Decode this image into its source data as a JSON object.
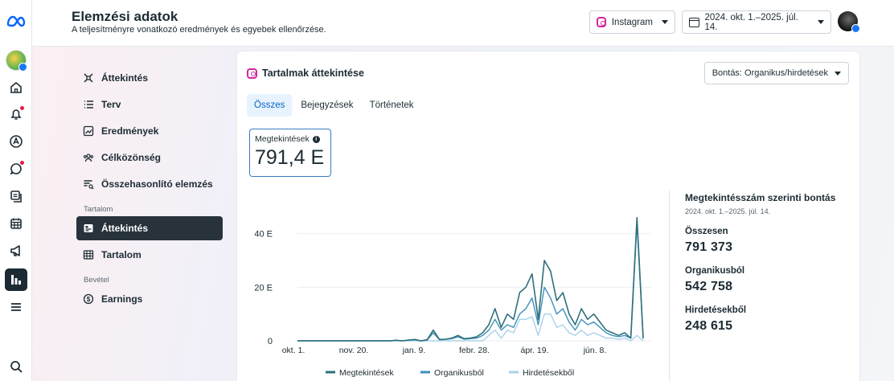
{
  "header": {
    "title": "Elemzési adatok",
    "subtitle": "A teljesítményre vonatkozó eredmények és egyebek ellenőrzése.",
    "platform": "Instagram",
    "date_range": "2024. okt. 1.–2025. júl. 14."
  },
  "nav": {
    "items": [
      {
        "label": "Áttekintés"
      },
      {
        "label": "Terv"
      },
      {
        "label": "Eredmények"
      },
      {
        "label": "Célközönség"
      },
      {
        "label": "Összehasonlító elemzés"
      }
    ],
    "section_content": "Tartalom",
    "content_items": [
      {
        "label": "Áttekintés"
      },
      {
        "label": "Tartalom"
      }
    ],
    "section_revenue": "Bevétel",
    "revenue_items": [
      {
        "label": "Earnings"
      }
    ]
  },
  "card": {
    "title": "Tartalmak áttekintése",
    "breakdown_label": "Bontás: Organikus/hirdetések",
    "tabs": [
      "Összes",
      "Bejegyzések",
      "Történetek"
    ],
    "metric_label": "Megtekintések",
    "metric_value": "791,4 E"
  },
  "breakdown_panel": {
    "title": "Megtekintésszám szerinti bontás",
    "date": "2024. okt. 1.–2025. júl. 14.",
    "total_label": "Összesen",
    "total_value": "791 373",
    "organic_label": "Organikusból",
    "organic_value": "542 758",
    "ads_label": "Hirdetésekből",
    "ads_value": "248 615"
  },
  "colors": {
    "views": "#2e6f7a",
    "organic": "#3e8fba",
    "ads": "#a9d2ea"
  },
  "chart_data": {
    "type": "line",
    "x_ticks": [
      "okt. 1.",
      "nov. 20.",
      "jan. 9.",
      "febr. 28.",
      "ápr. 19.",
      "jún. 8."
    ],
    "y_ticks": [
      "0",
      "20 E",
      "40 E"
    ],
    "ylim": [
      0,
      48
    ],
    "grid": true,
    "legend_position": "bottom",
    "series": [
      {
        "name": "Megtekintések",
        "values": [
          0,
          0,
          0,
          0,
          0,
          0,
          0,
          0,
          0,
          0,
          0,
          0,
          0,
          0,
          0,
          0,
          0.2,
          0,
          0.3,
          0.5,
          0,
          0.4,
          4,
          0.5,
          0.6,
          1,
          2,
          0.8,
          1,
          1.5,
          3,
          6,
          12,
          5,
          10,
          8,
          18,
          20,
          25,
          8,
          30,
          26,
          15,
          18,
          10,
          6,
          12,
          8,
          10,
          7,
          4,
          3,
          2,
          3,
          1,
          46,
          1
        ]
      },
      {
        "name": "Organikusból",
        "values": [
          0,
          0,
          0,
          0,
          0,
          0,
          0,
          0,
          0,
          0,
          0,
          0,
          0,
          0,
          0,
          0,
          0.2,
          0,
          0.2,
          0.4,
          0,
          0.3,
          3,
          0.4,
          0.5,
          0.8,
          1.5,
          0.6,
          0.8,
          1,
          2,
          4,
          8,
          4,
          6,
          5,
          10,
          12,
          16,
          6,
          20,
          16,
          10,
          12,
          7,
          4,
          8,
          6,
          7,
          5,
          3,
          2,
          1.5,
          2,
          1,
          44,
          0.8
        ]
      },
      {
        "name": "Hirdetésekből",
        "values": [
          0,
          0,
          0,
          0,
          0,
          0,
          0,
          0,
          0,
          0,
          0,
          0,
          0,
          0,
          0,
          0,
          0,
          0,
          0,
          0,
          0,
          0,
          0,
          0,
          0,
          0,
          0,
          0,
          0,
          0,
          0,
          2,
          4,
          1,
          4,
          3,
          8,
          8,
          9,
          2,
          10,
          10,
          5,
          6,
          3,
          2,
          4,
          2,
          3,
          2,
          1,
          1,
          0.5,
          1,
          0,
          2,
          0
        ]
      }
    ]
  }
}
